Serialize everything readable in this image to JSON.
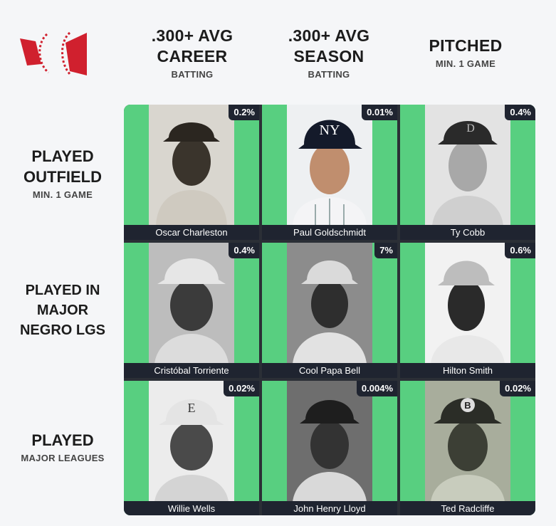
{
  "header": {
    "columns": [
      {
        "main_line1": ".300+ AVG",
        "main_line2": "CAREER",
        "sub": "BATTING"
      },
      {
        "main_line1": ".300+ AVG",
        "main_line2": "SEASON",
        "sub": "BATTING"
      },
      {
        "main_line1": "PITCHED",
        "main_line2": "",
        "sub": "MIN. 1 GAME"
      }
    ],
    "rows": [
      {
        "main_line1": "PLAYED",
        "main_line2": "OUTFIELD",
        "main_line3": "",
        "sub": "MIN. 1 GAME"
      },
      {
        "main_line1": "PLAYED IN",
        "main_line2": "MAJOR",
        "main_line3": "NEGRO LGS",
        "sub": ""
      },
      {
        "main_line1": "PLAYED",
        "main_line2": "",
        "main_line3": "",
        "sub": "MAJOR LEAGUES"
      }
    ]
  },
  "colors": {
    "cell_green": "#58cf80",
    "label_bg": "#1f2430",
    "logo_red": "#d0202e"
  },
  "cells": [
    {
      "name": "Oscar Charleston",
      "pct": "0.2%",
      "photo": "sepia-portrait"
    },
    {
      "name": "Paul Goldschmidt",
      "pct": "0.01%",
      "photo": "color-portrait-yankees-cap"
    },
    {
      "name": "Ty Cobb",
      "pct": "0.4%",
      "photo": "bw-portrait-detroit-cap"
    },
    {
      "name": "Cristóbal Torriente",
      "pct": "0.4%",
      "photo": "bw-portrait"
    },
    {
      "name": "Cool Papa Bell",
      "pct": "7%",
      "photo": "bw-portrait"
    },
    {
      "name": "Hilton Smith",
      "pct": "0.6%",
      "photo": "bw-portrait"
    },
    {
      "name": "Willie Wells",
      "pct": "0.02%",
      "photo": "bw-portrait-e-cap"
    },
    {
      "name": "John Henry Lloyd",
      "pct": "0.004%",
      "photo": "bw-portrait"
    },
    {
      "name": "Ted Radcliffe",
      "pct": "0.02%",
      "photo": "sepia-portrait-b-cap"
    }
  ]
}
